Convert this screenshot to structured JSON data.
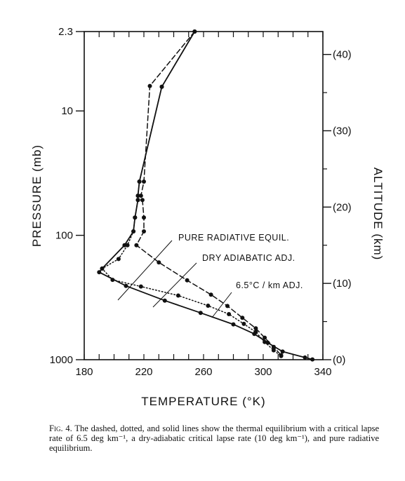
{
  "chart_data": {
    "type": "line",
    "title": "",
    "xlabel": "TEMPERATURE (°K)",
    "ylabel": "PRESSURE (mb)",
    "y2label": "ALTITUDE (km)",
    "xlim": [
      180,
      340
    ],
    "ylim": [
      1000,
      2.3
    ],
    "yscale": "log",
    "x_ticks": [
      {
        "value": 180,
        "label": "180"
      },
      {
        "value": 220,
        "label": "220"
      },
      {
        "value": 260,
        "label": "260"
      },
      {
        "value": 300,
        "label": "300"
      },
      {
        "value": 340,
        "label": "340"
      }
    ],
    "y_ticks": [
      {
        "value": 2.3,
        "label": "2.3"
      },
      {
        "value": 10,
        "label": "10"
      },
      {
        "value": 100,
        "label": "100"
      },
      {
        "value": 1000,
        "label": "1000"
      }
    ],
    "y2_ticks": [
      {
        "value": 40,
        "label": "(40)"
      },
      {
        "value": 30,
        "label": "(30)"
      },
      {
        "value": 20,
        "label": "(20)"
      },
      {
        "value": 10,
        "label": "(10)"
      },
      {
        "value": 0,
        "label": "(0)"
      }
    ],
    "series": [
      {
        "name": "PURE RADIATIVE EQUIL.",
        "style": "solid",
        "color": "#111111",
        "points": [
          [
            254,
            2.3
          ],
          [
            232,
            6.4
          ],
          [
            217,
            37
          ],
          [
            216,
            48
          ],
          [
            216,
            52
          ],
          [
            214,
            72
          ],
          [
            213,
            93
          ],
          [
            207,
            120
          ],
          [
            192,
            185
          ],
          [
            190,
            198
          ],
          [
            208,
            255
          ],
          [
            234,
            335
          ],
          [
            258,
            420
          ],
          [
            280,
            520
          ],
          [
            294,
            620
          ],
          [
            303,
            730
          ],
          [
            313,
            860
          ],
          [
            328,
            960
          ],
          [
            333,
            995
          ]
        ]
      },
      {
        "name": "DRY ADIABATIC ADJ.",
        "style": "dotted",
        "color": "#111111",
        "points": [
          [
            254,
            2.3
          ],
          [
            232,
            6.4
          ],
          [
            217,
            37
          ],
          [
            216,
            48
          ],
          [
            216,
            52
          ],
          [
            214,
            72
          ],
          [
            213,
            93
          ],
          [
            209,
            120
          ],
          [
            203,
            155
          ],
          [
            192,
            185
          ],
          [
            199,
            228
          ],
          [
            218,
            258
          ],
          [
            243,
            305
          ],
          [
            263,
            368
          ],
          [
            277,
            430
          ],
          [
            287,
            515
          ],
          [
            295,
            600
          ],
          [
            301,
            720
          ],
          [
            307,
            840
          ],
          [
            312,
            935
          ]
        ]
      },
      {
        "name": "6.5°C/km ADJ.",
        "style": "dashed",
        "color": "#111111",
        "points": [
          [
            254,
            2.3
          ],
          [
            224,
            6.3
          ],
          [
            220,
            37
          ],
          [
            218,
            48
          ],
          [
            219,
            52
          ],
          [
            220,
            72
          ],
          [
            220,
            93
          ],
          [
            215,
            120
          ],
          [
            230,
            165
          ],
          [
            249,
            230
          ],
          [
            265,
            300
          ],
          [
            276,
            370
          ],
          [
            286,
            460
          ],
          [
            295,
            560
          ],
          [
            301,
            665
          ],
          [
            307,
            790
          ],
          [
            312,
            920
          ]
        ]
      }
    ],
    "annotations": [
      {
        "text": "PURE RADIATIVE EQUIL.",
        "target_series": "PURE RADIATIVE EQUIL."
      },
      {
        "text": "DRY ADIABATIC ADJ.",
        "target_series": "DRY ADIABATIC ADJ."
      },
      {
        "text": "6.5°C / km ADJ.",
        "target_series": "6.5°C/km ADJ."
      }
    ],
    "grid": false,
    "legend": "none"
  },
  "caption": {
    "label": "Fig. 4.",
    "text": "The dashed, dotted, and solid lines show the thermal equilibrium with a critical lapse rate of 6.5 deg km⁻¹, a dry-adiabatic critical lapse rate (10 deg km⁻¹), and pure radiative equilibrium."
  }
}
